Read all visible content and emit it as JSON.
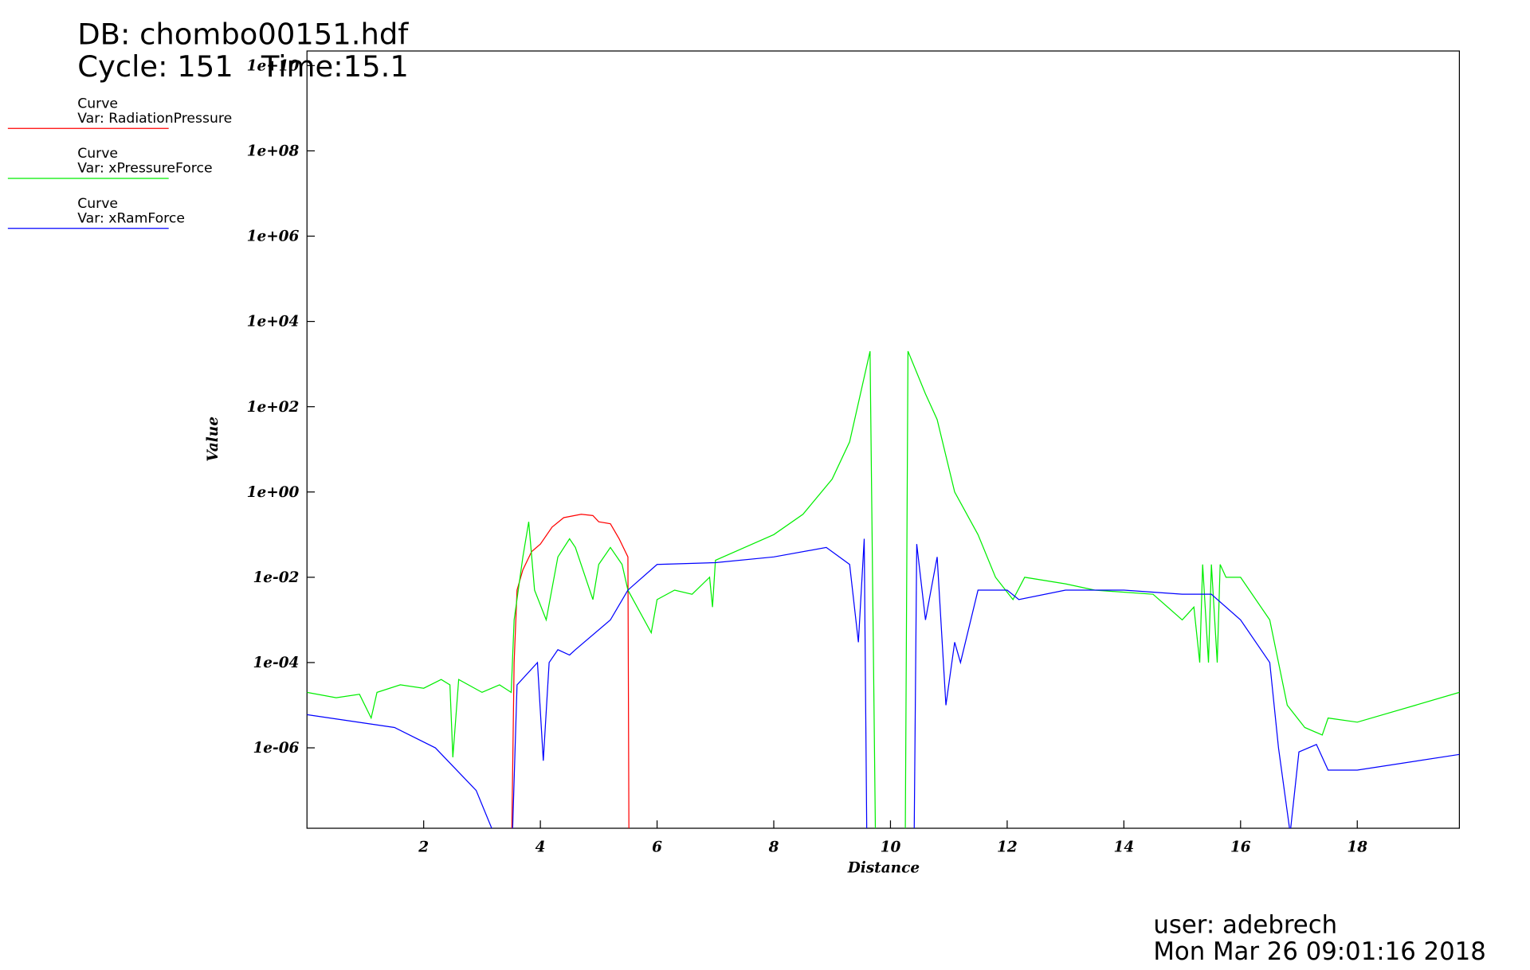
{
  "chart_data": {
    "type": "line",
    "title": "DB: chombo00151.hdf",
    "subtitle": "Cycle: 151   Time:15.1",
    "x_label": "Distance",
    "y_label": "Value",
    "legend_label": "Curve",
    "log_y": true,
    "xlim": [
      0,
      19.75
    ],
    "xticks": [
      2,
      4,
      6,
      8,
      10,
      12,
      14,
      16,
      18
    ],
    "ylim": [
      1.3e-08,
      22000000000.0
    ],
    "yticks": [
      {
        "value": 1e-06,
        "label": "1e-06"
      },
      {
        "value": 0.0001,
        "label": "1e-04"
      },
      {
        "value": 0.01,
        "label": "1e-02"
      },
      {
        "value": 1,
        "label": "1e+00"
      },
      {
        "value": 100,
        "label": "1e+02"
      },
      {
        "value": 10000,
        "label": "1e+04"
      },
      {
        "value": 1000000,
        "label": "1e+06"
      },
      {
        "value": 100000000,
        "label": "1e+08"
      },
      {
        "value": 10000000000,
        "label": "1e+10"
      }
    ],
    "series": [
      {
        "name": "Var: RadiationPressure",
        "color": "#ff0000",
        "x": [
          3.5,
          3.55,
          3.6,
          3.7,
          3.85,
          4.0,
          4.2,
          4.4,
          4.7,
          4.9,
          5.0,
          5.2,
          5.35,
          5.5,
          5.52
        ],
        "values": [
          1e-09,
          0.0001,
          0.005,
          0.015,
          0.04,
          0.06,
          0.15,
          0.25,
          0.3,
          0.28,
          0.2,
          0.18,
          0.08,
          0.03,
          1e-09
        ]
      },
      {
        "name": "Var: xPressureForce",
        "color": "#00ee00",
        "x": [
          0,
          0.5,
          0.9,
          1.1,
          1.2,
          1.6,
          2.0,
          2.3,
          2.45,
          2.5,
          2.6,
          3.0,
          3.3,
          3.5,
          3.55,
          3.7,
          3.8,
          3.9,
          4.1,
          4.3,
          4.5,
          4.6,
          4.9,
          5.0,
          5.2,
          5.4,
          5.5,
          5.9,
          6.0,
          6.3,
          6.6,
          6.9,
          6.95,
          7.0,
          7.5,
          8.0,
          8.5,
          9.0,
          9.3,
          9.65,
          9.75,
          10.25,
          10.3,
          10.6,
          10.8,
          11.1,
          11.5,
          11.8,
          12.1,
          12.3,
          13.0,
          13.5,
          14.5,
          15.0,
          15.2,
          15.3,
          15.35,
          15.45,
          15.5,
          15.6,
          15.65,
          15.75,
          16.0,
          16.5,
          16.8,
          17.1,
          17.4,
          17.5,
          18.0,
          19.0,
          19.75
        ],
        "values": [
          2e-05,
          1.5e-05,
          1.8e-05,
          5e-06,
          2e-05,
          3e-05,
          2.5e-05,
          4e-05,
          3e-05,
          6e-07,
          4e-05,
          2e-05,
          3e-05,
          2e-05,
          0.001,
          0.03,
          0.2,
          0.005,
          0.001,
          0.03,
          0.08,
          0.05,
          0.003,
          0.02,
          0.05,
          0.02,
          0.005,
          0.0005,
          0.003,
          0.005,
          0.004,
          0.01,
          0.002,
          0.025,
          0.05,
          0.1,
          0.3,
          2,
          15.0,
          2000.0,
          1e-09,
          1e-09,
          2000.0,
          200.0,
          50.0,
          1,
          0.1,
          0.01,
          0.003,
          0.01,
          0.007,
          0.005,
          0.004,
          0.001,
          0.002,
          0.0001,
          0.02,
          0.0001,
          0.02,
          0.0001,
          0.02,
          0.01,
          0.01,
          0.001,
          1e-05,
          3e-06,
          2e-06,
          5e-06,
          4e-06,
          1e-05,
          2e-05
        ]
      },
      {
        "name": "Var: xRamForce",
        "color": "#0000ff",
        "x": [
          0,
          1.5,
          2.2,
          2.9,
          3.2,
          3.5,
          3.6,
          3.95,
          4.05,
          4.15,
          4.3,
          4.5,
          4.6,
          5.2,
          5.5,
          6.0,
          7.0,
          8.0,
          8.9,
          9.3,
          9.45,
          9.55,
          9.6,
          10.4,
          10.45,
          10.6,
          10.8,
          10.95,
          11.1,
          11.2,
          11.5,
          12.0,
          12.2,
          13.0,
          14.0,
          15.0,
          15.5,
          16.0,
          16.5,
          16.65,
          16.85,
          17.0,
          17.3,
          17.5,
          18.0,
          19.75
        ],
        "values": [
          6e-06,
          3e-06,
          1e-06,
          1e-07,
          1e-08,
          1e-09,
          3e-05,
          0.0001,
          5e-07,
          0.0001,
          0.0002,
          0.00015,
          0.0002,
          0.001,
          0.005,
          0.02,
          0.022,
          0.03,
          0.05,
          0.02,
          0.0003,
          0.08,
          1e-09,
          1e-09,
          0.06,
          0.001,
          0.03,
          1e-05,
          0.0003,
          0.0001,
          0.005,
          0.005,
          0.003,
          0.005,
          0.005,
          0.004,
          0.004,
          0.001,
          0.0001,
          1e-06,
          1e-08,
          8e-07,
          1.2e-06,
          3e-07,
          3e-07,
          7e-07
        ]
      }
    ],
    "user": "user: adebrech",
    "timestamp": "Mon Mar 26 09:01:16 2018"
  }
}
